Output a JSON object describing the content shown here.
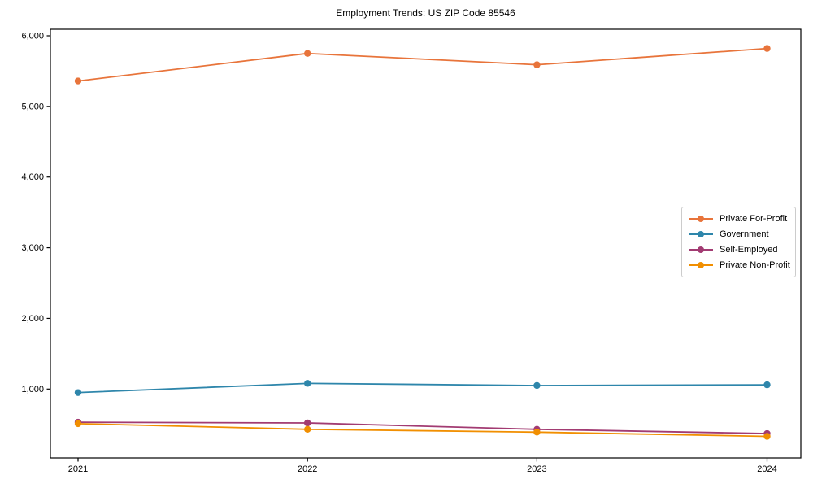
{
  "window": {
    "background": "#ffffff",
    "axis_color": "#000000",
    "legend_border_color": "#cccccc"
  },
  "chart_data": {
    "type": "line",
    "title": "Employment Trends: US ZIP Code 85546",
    "categories": [
      "2021",
      "2022",
      "2023",
      "2024"
    ],
    "xlabel": "",
    "ylabel": "",
    "y_ticks": [
      1000,
      2000,
      3000,
      4000,
      5000,
      6000
    ],
    "y_tick_labels": [
      "1,000",
      "2,000",
      "3,000",
      "4,000",
      "5,000",
      "6,000"
    ],
    "ylim": [
      25,
      6092
    ],
    "grid": false,
    "legend_position": "center-right",
    "marker": "circle",
    "series": [
      {
        "name": "Private For-Profit",
        "color": "#E8743B",
        "values": [
          5360,
          5750,
          5590,
          5820
        ]
      },
      {
        "name": "Government",
        "color": "#2E86AB",
        "values": [
          950,
          1080,
          1050,
          1060
        ]
      },
      {
        "name": "Self-Employed",
        "color": "#A23B72",
        "values": [
          530,
          520,
          430,
          370
        ]
      },
      {
        "name": "Private Non-Profit",
        "color": "#F18F01",
        "values": [
          510,
          430,
          390,
          330
        ]
      }
    ]
  }
}
